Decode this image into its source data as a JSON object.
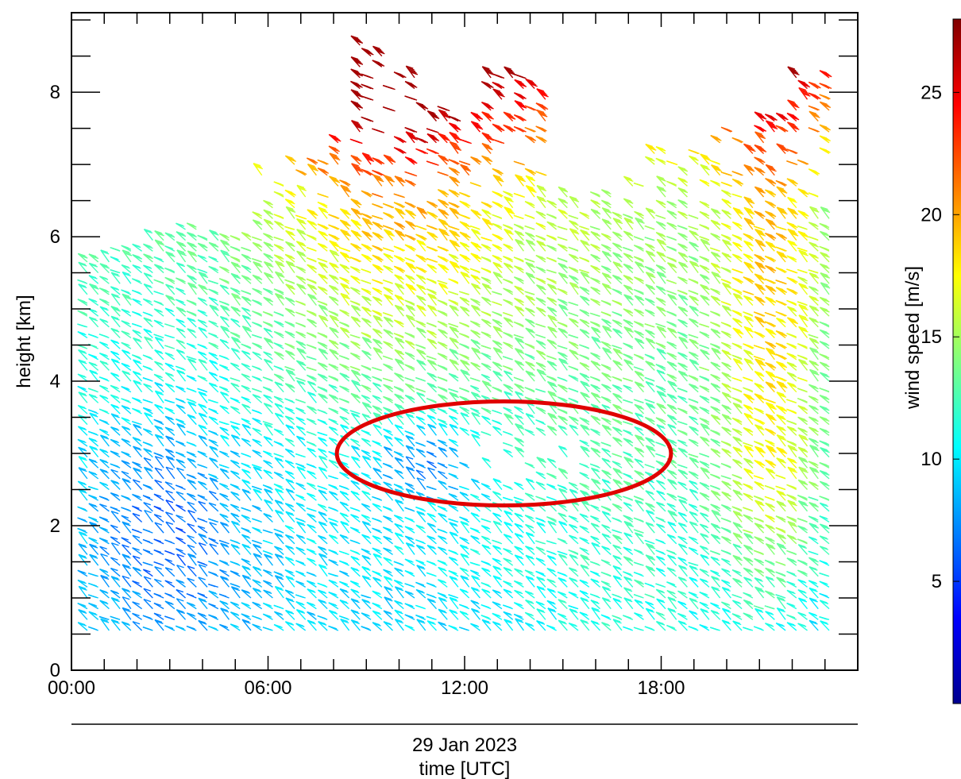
{
  "chart_data": {
    "type": "wind barb time-height plot",
    "xlabel": "time [UTC]",
    "date_label": "29 Jan 2023",
    "ylabel": "height [km]",
    "colorbar_label": "wind speed [m/s]",
    "xlim_hours": [
      0,
      24
    ],
    "ylim_km": [
      0,
      9.1
    ],
    "x_ticks": [
      {
        "hour": 0,
        "label": "00:00"
      },
      {
        "hour": 6,
        "label": "06:00"
      },
      {
        "hour": 12,
        "label": "12:00"
      },
      {
        "hour": 18,
        "label": "18:00"
      }
    ],
    "y_ticks": [
      {
        "value": 0,
        "label": "0"
      },
      {
        "value": 2,
        "label": "2"
      },
      {
        "value": 4,
        "label": "4"
      },
      {
        "value": 6,
        "label": "6"
      },
      {
        "value": 8,
        "label": "8"
      }
    ],
    "colorbar_range": [
      0,
      28
    ],
    "colorbar_ticks": [
      {
        "value": 5,
        "label": "5"
      },
      {
        "value": 10,
        "label": "10"
      },
      {
        "value": 15,
        "label": "15"
      },
      {
        "value": 20,
        "label": "20"
      },
      {
        "value": 25,
        "label": "25"
      }
    ],
    "colormap": [
      "#00008f",
      "#0000ff",
      "#0080ff",
      "#00ffff",
      "#80ff80",
      "#ffff00",
      "#ff8000",
      "#ff0000",
      "#800000"
    ],
    "highlight_ellipse": {
      "center_hour": 13.2,
      "center_km": 3.0,
      "half_width_hours": 5.1,
      "half_height_km": 0.72,
      "color": "#e00000"
    },
    "barbs_time_step_hours": 0.333,
    "barbs_height_step_km": 0.15
  }
}
